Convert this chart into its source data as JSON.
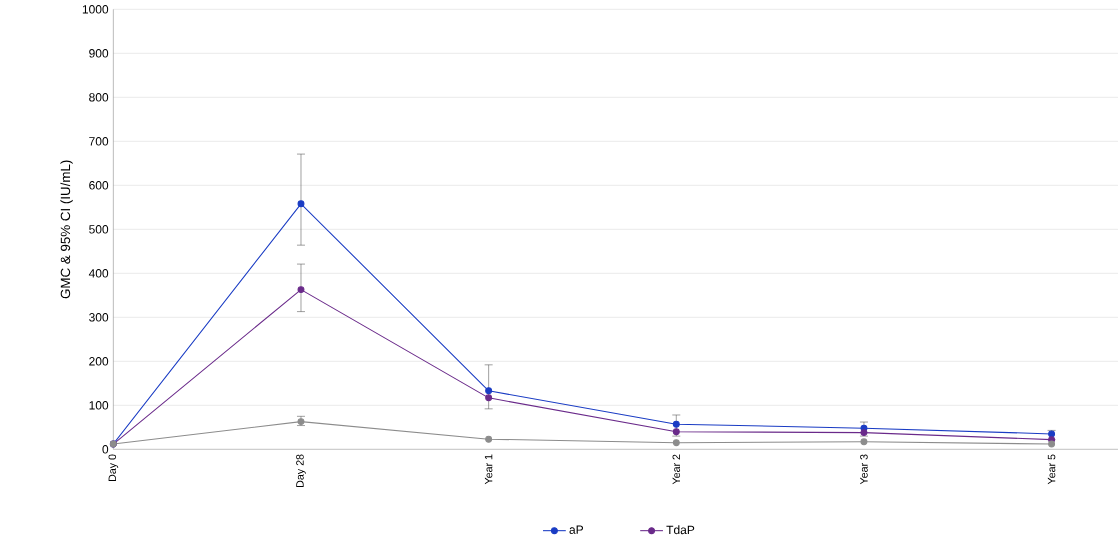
{
  "chart_data": {
    "type": "line",
    "ylabel": "GMC & 95% CI (IU/mL)",
    "categories": [
      "Day 0",
      "Day 28",
      "Year 1",
      "Year 2",
      "Year 3",
      "Year 5"
    ],
    "ylim": [
      0,
      1000
    ],
    "yticks": [
      0,
      100,
      200,
      300,
      400,
      500,
      600,
      700,
      800,
      900,
      1000
    ],
    "grid": "y",
    "legend": "bottom",
    "marker": "circle",
    "line_style": "solid",
    "series": [
      {
        "name": "aP",
        "color": "#1a3cc4",
        "values": [
          12,
          558,
          133,
          57,
          48,
          35
        ],
        "errors": [
          null,
          [
            464,
            671
          ],
          [
            92,
            192
          ],
          [
            30,
            78
          ],
          [
            30,
            62
          ],
          [
            22,
            43
          ]
        ]
      },
      {
        "name": "TdaP",
        "color": "#6a2a8a",
        "values": [
          12,
          363,
          117,
          40,
          38,
          22
        ],
        "errors": [
          null,
          [
            313,
            421
          ],
          null,
          null,
          null,
          null
        ]
      },
      {
        "color": "#8c8c8c",
        "values": [
          12,
          63,
          23,
          15,
          17,
          12
        ],
        "errors": [
          null,
          [
            54,
            75
          ],
          null,
          null,
          null,
          null
        ]
      }
    ]
  }
}
